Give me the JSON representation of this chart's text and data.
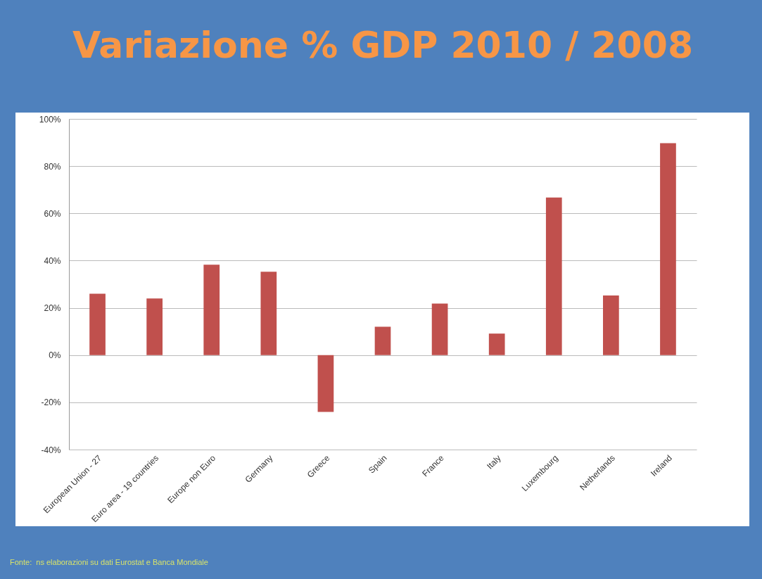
{
  "chart_data": {
    "type": "bar",
    "title": "Variazione % GDP 2010 / 2008",
    "categories": [
      "European Union - 27",
      "Euro area - 19 countries",
      "Europe non Euro",
      "Germany",
      "Greece",
      "Spain",
      "France",
      "Italy",
      "Luxembourg",
      "Netherlands",
      "Ireland"
    ],
    "values": [
      26.0,
      24.0,
      38.3,
      35.3,
      -24.1,
      12.0,
      21.8,
      9.1,
      66.7,
      25.2,
      89.7
    ],
    "color": "#c0504d",
    "ylim": [
      -40,
      100
    ],
    "yticks": [
      {
        "value": -40,
        "label": "-40%"
      },
      {
        "value": -20,
        "label": "-20%"
      },
      {
        "value": 0,
        "label": "0%"
      },
      {
        "value": 20,
        "label": "20%"
      },
      {
        "value": 40,
        "label": "40%"
      },
      {
        "value": 60,
        "label": "60%"
      },
      {
        "value": 80,
        "label": "80%"
      },
      {
        "value": 100,
        "label": "100%"
      }
    ],
    "grid": "y",
    "annotations": [
      "Fonte:  ns elaborazioni su dati Eurostat e Banca Mondiale"
    ]
  }
}
